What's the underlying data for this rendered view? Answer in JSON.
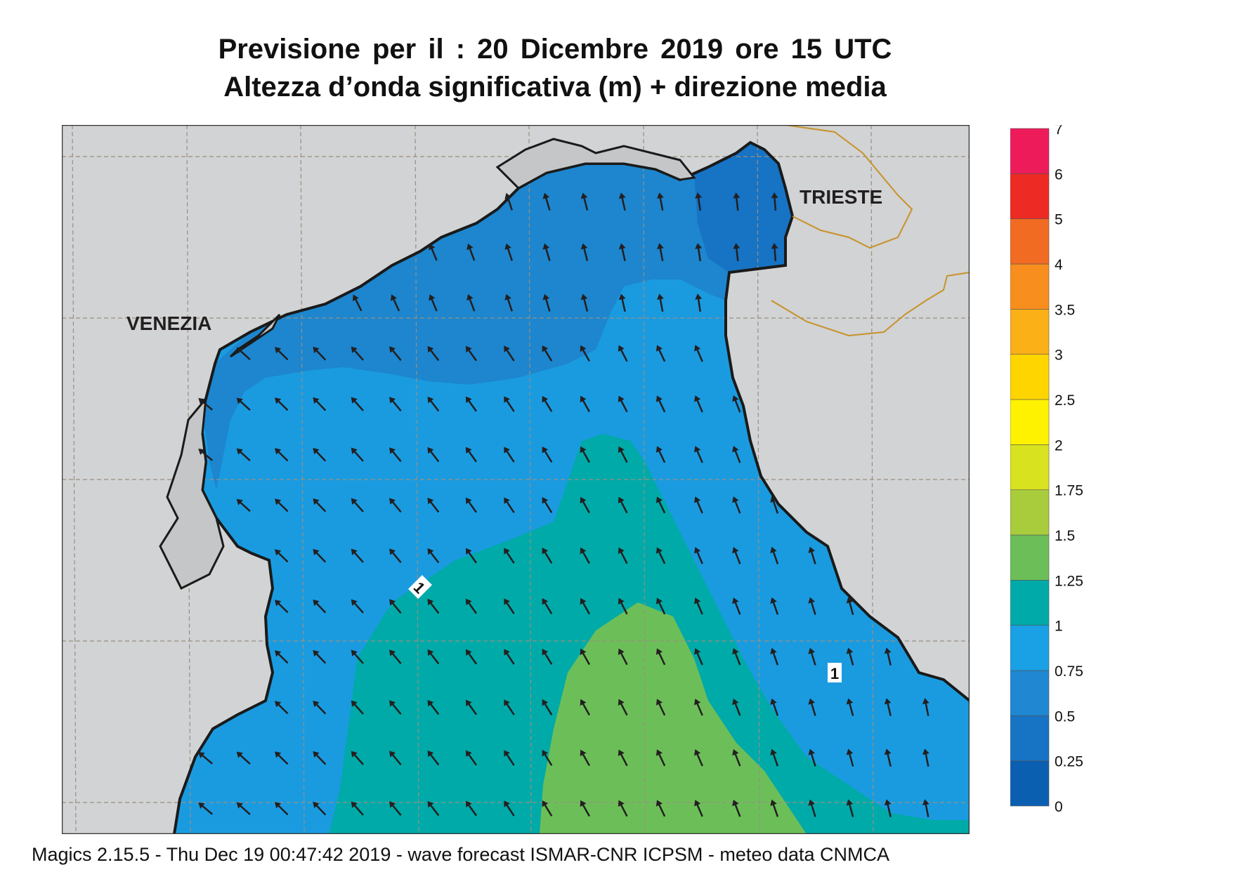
{
  "title_line1": "Previsione per il  :  20 Dicembre  2019   ore 15 UTC",
  "title_line2": "Altezza d’onda significativa (m) + direzione media",
  "cities": [
    {
      "name": "VENEZIA"
    },
    {
      "name": "TRIESTE"
    }
  ],
  "contour_labels": [
    "1",
    "1"
  ],
  "legend": {
    "levels": [
      "0",
      "0.25",
      "0.5",
      "0.75",
      "1",
      "1.25",
      "1.5",
      "1.75",
      "2",
      "2.5",
      "3",
      "3.5",
      "4",
      "5",
      "6",
      "7"
    ],
    "colors": [
      "#0b5fb0",
      "#1773c4",
      "#2088d2",
      "#1aa0e4",
      "#00aaa8",
      "#6cbf58",
      "#a9cc3c",
      "#d9e21e",
      "#fff200",
      "#ffd500",
      "#fcb017",
      "#f78e1e",
      "#f16b22",
      "#ee2a24",
      "#ee1b5b"
    ]
  },
  "colors": {
    "land": "#d1d3d4",
    "sea_deep_low": "#1e84cc",
    "sea_mid": "#1a9be0",
    "sea_1_125": "#00aaa8",
    "sea_125_15": "#6cbf58",
    "coast": "#1a1a1a",
    "border": "#c8922a"
  },
  "footer": "Magics 2.15.5 - Thu Dec 19 00:47:42 2019 - wave forecast  ISMAR-CNR  ICPSM - meteo data   CNMCA"
}
